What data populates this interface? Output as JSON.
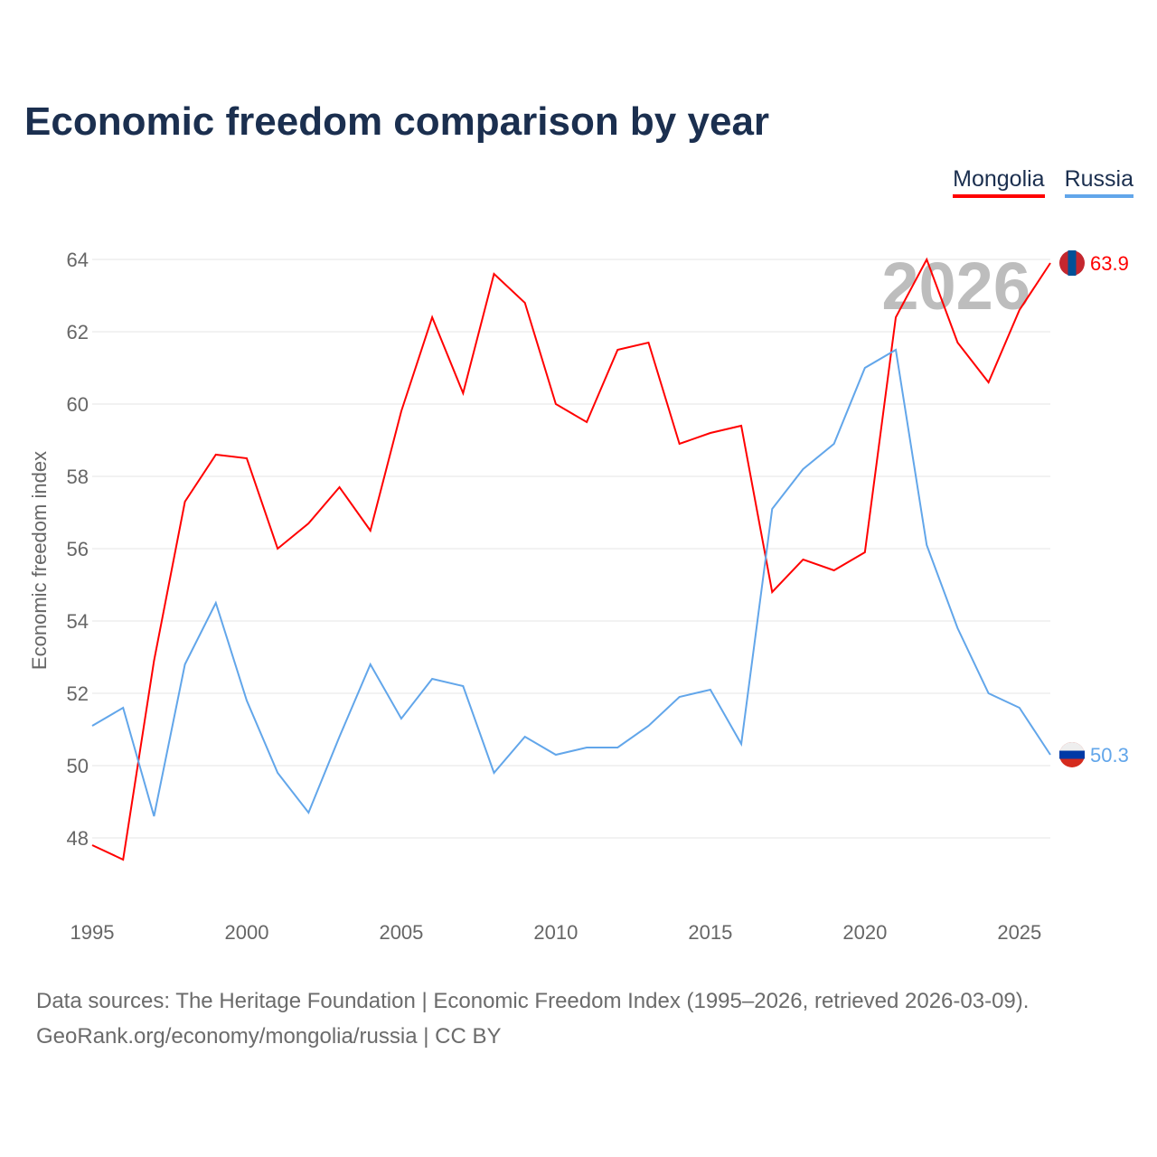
{
  "title": "Economic freedom comparison by year",
  "legend": [
    {
      "label": "Mongolia",
      "color": "#ff0000"
    },
    {
      "label": "Russia",
      "color": "#62a6ea"
    }
  ],
  "source_line1": "Data sources: The Heritage Foundation | Economic Freedom Index (1995–2026, retrieved 2026-03-09).",
  "source_line2": "GeoRank.org/economy/mongolia/russia | CC BY",
  "chart_data": {
    "type": "line",
    "title": "Economic freedom comparison by year",
    "xlabel": "",
    "ylabel": "Economic freedom index",
    "xlim": [
      1995,
      2026
    ],
    "ylim": [
      46,
      64.5
    ],
    "yticks": [
      48,
      50,
      52,
      54,
      56,
      58,
      60,
      62,
      64
    ],
    "xticks": [
      1995,
      2000,
      2005,
      2010,
      2015,
      2020,
      2025
    ],
    "year_watermark": "2026",
    "grid": true,
    "legend_placement": "top-right",
    "x": [
      1995,
      1996,
      1997,
      1998,
      1999,
      2000,
      2001,
      2002,
      2003,
      2004,
      2005,
      2006,
      2007,
      2008,
      2009,
      2010,
      2011,
      2012,
      2013,
      2014,
      2015,
      2016,
      2017,
      2018,
      2019,
      2020,
      2021,
      2022,
      2023,
      2024,
      2025,
      2026
    ],
    "series": [
      {
        "name": "Mongolia",
        "color": "#ff0000",
        "end_label": "63.9",
        "values": [
          47.8,
          47.4,
          52.9,
          57.3,
          58.6,
          58.5,
          56.0,
          56.7,
          57.7,
          56.5,
          59.8,
          62.4,
          60.3,
          63.6,
          62.8,
          60.0,
          59.5,
          61.5,
          61.7,
          58.9,
          59.2,
          59.4,
          54.8,
          55.7,
          55.4,
          55.9,
          62.4,
          64.0,
          61.7,
          60.6,
          62.6,
          63.9
        ]
      },
      {
        "name": "Russia",
        "color": "#62a6ea",
        "end_label": "50.3",
        "values": [
          51.1,
          51.6,
          48.6,
          52.8,
          54.5,
          51.8,
          49.8,
          48.7,
          50.8,
          52.8,
          51.3,
          52.4,
          52.2,
          49.8,
          50.8,
          50.3,
          50.5,
          50.5,
          51.1,
          51.9,
          52.1,
          50.6,
          57.1,
          58.2,
          58.9,
          61.0,
          61.5,
          56.1,
          53.8,
          52.0,
          51.6,
          50.3
        ]
      }
    ]
  }
}
